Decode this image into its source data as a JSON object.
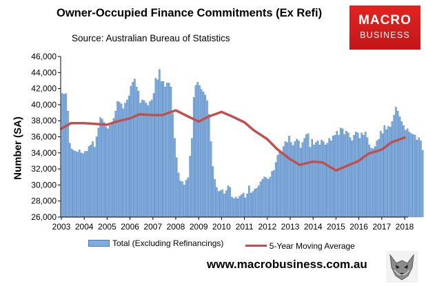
{
  "header": {
    "title": "Owner-Occupied Finance Commitments (Ex Refi)",
    "source": "Source: Australian  Bureau of Statistics"
  },
  "logo": {
    "line1": "MACRO",
    "line2": "BUSINESS"
  },
  "footer": {
    "url": "www.macrobusiness.com.au"
  },
  "colors": {
    "bars": "#7faede",
    "bar_edge": "#4a79b8",
    "line": "#c0504d",
    "logo": "#d41f1f"
  },
  "icons": {
    "mascot": "wolf-icon"
  },
  "chart_data": {
    "type": "bar",
    "title": "Owner-Occupied Finance Commitments (Ex Refi)",
    "ylabel": "Number (SA)",
    "xlabel": "",
    "ylim": [
      26000,
      46000
    ],
    "yticks": [
      "26,000",
      "28,000",
      "30,000",
      "32,000",
      "34,000",
      "36,000",
      "38,000",
      "40,000",
      "42,000",
      "44,000",
      "46,000"
    ],
    "xticks": [
      "2003",
      "2004",
      "2005",
      "2006",
      "2007",
      "2008",
      "2009",
      "2010",
      "2011",
      "2012",
      "2013",
      "2014",
      "2015",
      "2016",
      "2017",
      "2018"
    ],
    "x_start": "2003-01",
    "legend_position": "bottom",
    "grid": false,
    "series": [
      {
        "name": "Total (Excluding Refinancings)",
        "type": "bar",
        "values": [
          41400,
          41300,
          41400,
          39200,
          35200,
          34500,
          34300,
          34200,
          34100,
          34400,
          34000,
          33900,
          34200,
          34200,
          34800,
          35000,
          35400,
          34700,
          36000,
          37100,
          38400,
          38200,
          37800,
          37200,
          37000,
          37400,
          37800,
          38300,
          39200,
          40400,
          40300,
          40100,
          39500,
          40200,
          40600,
          41100,
          42300,
          42800,
          43200,
          42200,
          41700,
          40200,
          40600,
          40500,
          40200,
          39900,
          40400,
          40600,
          41400,
          43300,
          43100,
          44400,
          42900,
          42900,
          42200,
          42700,
          42700,
          42200,
          38900,
          35800,
          33400,
          31500,
          30500,
          30400,
          30000,
          30600,
          30900,
          33600,
          35800,
          40900,
          42400,
          42800,
          42400,
          41900,
          41600,
          41200,
          40500,
          38800,
          35400,
          32300,
          30700,
          29700,
          29200,
          29300,
          29400,
          28900,
          29300,
          29900,
          29700,
          28500,
          28300,
          28500,
          28300,
          28600,
          28800,
          29000,
          28400,
          28900,
          29900,
          29000,
          29200,
          29500,
          29600,
          29900,
          30400,
          30700,
          31000,
          30900,
          30700,
          31000,
          31700,
          31800,
          32800,
          33700,
          34100,
          33900,
          34800,
          35400,
          35300,
          36100,
          35300,
          34900,
          35400,
          35700,
          35500,
          34600,
          35300,
          35800,
          36300,
          36400,
          34700,
          35700,
          35000,
          35300,
          35500,
          35000,
          35600,
          35400,
          35000,
          35200,
          35800,
          35500,
          36100,
          36200,
          36700,
          36200,
          37100,
          37000,
          36300,
          36700,
          36500,
          35900,
          35500,
          36200,
          36600,
          36500,
          35800,
          36500,
          36200,
          36600,
          35900,
          35000,
          34600,
          34500,
          34800,
          35500,
          35700,
          36700,
          36400,
          37400,
          36900,
          37300,
          37200,
          37900,
          38700,
          39700,
          39200,
          38500,
          37900,
          37400,
          36800,
          37000,
          36600,
          36400,
          36300,
          36200,
          35600,
          35900,
          35500,
          34300
        ]
      },
      {
        "name": "5-Year Moving Average",
        "type": "line",
        "x": [
          "2003-01",
          "2003-06",
          "2004-01",
          "2005-01",
          "2005-06",
          "2006-01",
          "2006-06",
          "2007-01",
          "2007-06",
          "2008-01",
          "2008-06",
          "2009-01",
          "2009-06",
          "2010-01",
          "2010-06",
          "2011-01",
          "2011-06",
          "2012-01",
          "2012-06",
          "2013-01",
          "2013-06",
          "2014-01",
          "2014-06",
          "2015-01",
          "2015-06",
          "2016-01",
          "2016-06",
          "2017-01",
          "2017-06",
          "2018-01"
        ],
        "values": [
          37000,
          37700,
          37700,
          37500,
          37900,
          38300,
          38800,
          38700,
          38700,
          39300,
          38700,
          37900,
          38500,
          39100,
          38600,
          37800,
          36800,
          35700,
          34500,
          33200,
          32500,
          32900,
          32800,
          31800,
          32300,
          33000,
          33900,
          34400,
          35300,
          35900
        ]
      }
    ]
  }
}
